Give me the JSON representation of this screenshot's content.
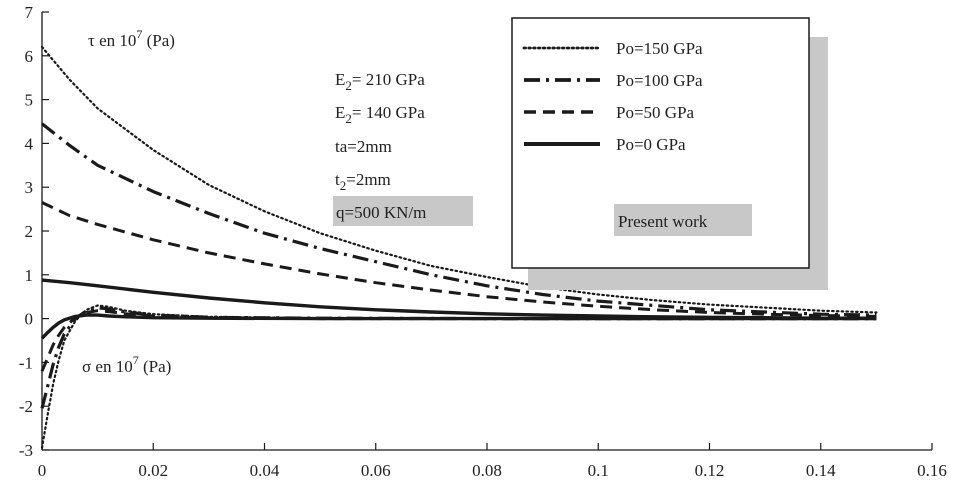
{
  "chart_data": {
    "type": "line",
    "title": "",
    "xlabel": "",
    "ylabel": "",
    "xlim": [
      0,
      0.16
    ],
    "ylim": [
      -3,
      7
    ],
    "x_ticks": [
      "0",
      "0.02",
      "0.04",
      "0.06",
      "0.08",
      "0.1",
      "0.12",
      "0.14",
      "0.16"
    ],
    "y_ticks": [
      "-3",
      "-2",
      "-1",
      "0",
      "1",
      "2",
      "3",
      "4",
      "5",
      "6",
      "7"
    ],
    "grid": false,
    "legend_position": "top-right",
    "series": [
      {
        "name": "Po=150 GPa",
        "style": "dotted",
        "quantity": "tau",
        "x": [
          0,
          0.005,
          0.01,
          0.02,
          0.03,
          0.04,
          0.05,
          0.06,
          0.07,
          0.08,
          0.09,
          0.1,
          0.11,
          0.12,
          0.13,
          0.14,
          0.15
        ],
        "y": [
          6.2,
          5.45,
          4.8,
          3.85,
          3.05,
          2.45,
          1.95,
          1.55,
          1.2,
          0.95,
          0.72,
          0.55,
          0.42,
          0.32,
          0.25,
          0.18,
          0.14
        ]
      },
      {
        "name": "Po=100 GPa",
        "style": "dashdot",
        "quantity": "tau",
        "x": [
          0,
          0.005,
          0.01,
          0.02,
          0.03,
          0.04,
          0.05,
          0.06,
          0.07,
          0.08,
          0.09,
          0.1,
          0.11,
          0.12,
          0.13,
          0.14,
          0.15
        ],
        "y": [
          4.45,
          3.95,
          3.5,
          2.9,
          2.4,
          1.95,
          1.6,
          1.3,
          1.0,
          0.75,
          0.55,
          0.4,
          0.3,
          0.2,
          0.15,
          0.1,
          0.08
        ]
      },
      {
        "name": "Po=50 GPa",
        "style": "dashed",
        "quantity": "tau",
        "x": [
          0,
          0.005,
          0.01,
          0.02,
          0.03,
          0.04,
          0.05,
          0.06,
          0.07,
          0.08,
          0.09,
          0.1,
          0.11,
          0.12,
          0.13,
          0.14,
          0.15
        ],
        "y": [
          2.65,
          2.35,
          2.15,
          1.8,
          1.5,
          1.25,
          1.02,
          0.82,
          0.65,
          0.5,
          0.38,
          0.28,
          0.2,
          0.14,
          0.1,
          0.07,
          0.05
        ]
      },
      {
        "name": "Po=0 GPa",
        "style": "solid",
        "quantity": "tau",
        "x": [
          0,
          0.005,
          0.01,
          0.02,
          0.03,
          0.04,
          0.05,
          0.06,
          0.07,
          0.08,
          0.09,
          0.1,
          0.11,
          0.12,
          0.13,
          0.14,
          0.15
        ],
        "y": [
          0.88,
          0.82,
          0.75,
          0.6,
          0.47,
          0.36,
          0.27,
          0.2,
          0.15,
          0.11,
          0.08,
          0.06,
          0.04,
          0.03,
          0.02,
          0.01,
          0.01
        ]
      },
      {
        "name": "Po=150 GPa",
        "style": "dotted",
        "quantity": "sigma",
        "x": [
          0,
          0.001,
          0.002,
          0.003,
          0.004,
          0.006,
          0.008,
          0.01,
          0.012,
          0.015,
          0.02,
          0.03,
          0.05,
          0.08,
          0.15
        ],
        "y": [
          -2.95,
          -2.2,
          -1.5,
          -0.95,
          -0.5,
          -0.05,
          0.2,
          0.3,
          0.27,
          0.18,
          0.1,
          0.04,
          0.01,
          0.0,
          0.0
        ]
      },
      {
        "name": "Po=100 GPa",
        "style": "dashdot",
        "quantity": "sigma",
        "x": [
          0,
          0.001,
          0.002,
          0.003,
          0.004,
          0.006,
          0.008,
          0.01,
          0.012,
          0.015,
          0.02,
          0.03,
          0.05,
          0.08,
          0.15
        ],
        "y": [
          -2.05,
          -1.55,
          -1.05,
          -0.65,
          -0.35,
          0.0,
          0.18,
          0.25,
          0.22,
          0.15,
          0.08,
          0.03,
          0.01,
          0.0,
          0.0
        ]
      },
      {
        "name": "Po=50 GPa",
        "style": "dashed",
        "quantity": "sigma",
        "x": [
          0,
          0.001,
          0.002,
          0.003,
          0.004,
          0.006,
          0.008,
          0.01,
          0.012,
          0.015,
          0.02,
          0.03,
          0.05,
          0.08,
          0.15
        ],
        "y": [
          -1.2,
          -0.9,
          -0.6,
          -0.38,
          -0.2,
          0.02,
          0.14,
          0.18,
          0.16,
          0.11,
          0.06,
          0.02,
          0.0,
          0.0,
          0.0
        ]
      },
      {
        "name": "Po=0 GPa",
        "style": "solid",
        "quantity": "sigma",
        "x": [
          0,
          0.001,
          0.002,
          0.003,
          0.004,
          0.006,
          0.008,
          0.01,
          0.012,
          0.015,
          0.02,
          0.03,
          0.05,
          0.08,
          0.15
        ],
        "y": [
          -0.45,
          -0.32,
          -0.2,
          -0.1,
          -0.03,
          0.05,
          0.08,
          0.08,
          0.06,
          0.04,
          0.02,
          0.01,
          0.0,
          0.0,
          0.0
        ]
      }
    ],
    "annotations": {
      "tau_label": "τ en 10",
      "tau_exp": "7",
      "tau_unit": " (Pa)",
      "sigma_label": "σ en 10",
      "sigma_exp": "7",
      "sigma_unit": " (Pa)",
      "e2_a": "E",
      "e2_a_sub": "2",
      "e2_a_val": "= 210 GPa",
      "e2_b": "E",
      "e2_b_sub": "2",
      "e2_b_val": "= 140 GPa",
      "ta": "ta=2mm",
      "t2": "t",
      "t2_sub": "2",
      "t2_val": "=2mm",
      "q": "q=500 KN/m"
    },
    "legend_note": "Present work",
    "colors": {
      "line": "#1a1a1a",
      "shadow": "#c8c8c8"
    }
  }
}
